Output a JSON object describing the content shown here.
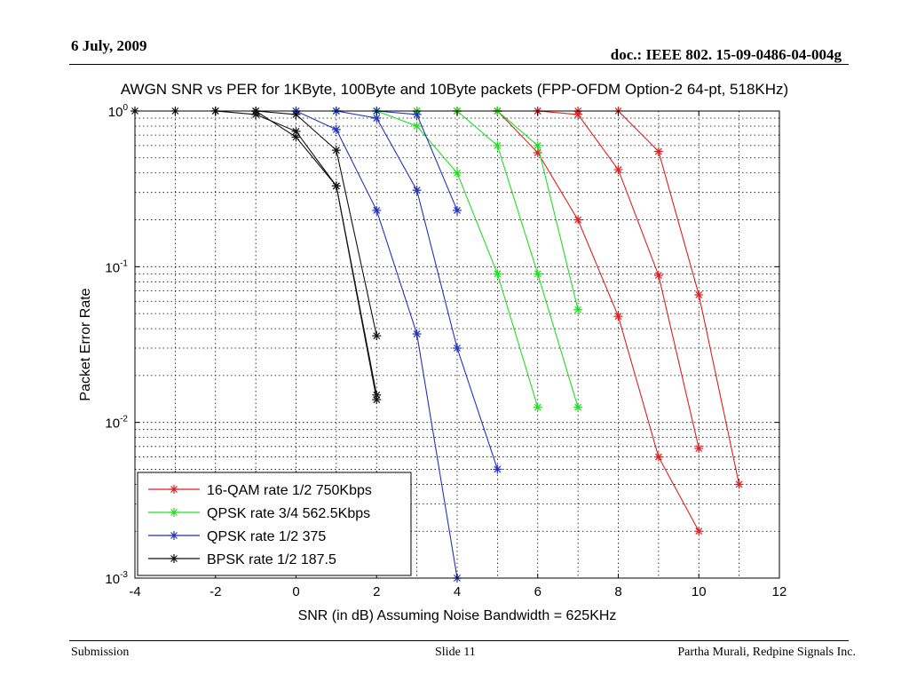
{
  "slide": {
    "date": "6 July, 2009",
    "doc_id": "doc.: IEEE 802. 15-09-0486-04-004g",
    "footer_left": "Submission",
    "footer_center": "Slide 11",
    "footer_right": "Partha Murali, Redpine Signals Inc."
  },
  "chart_data": {
    "type": "line",
    "title": "AWGN SNR vs PER for 1KByte, 100Byte and 10Byte packets (FPP-OFDM Option-2 64-pt, 518KHz)",
    "xlabel": "SNR (in dB) Assuming Noise Bandwidth = 625KHz",
    "ylabel": "Packet Error Rate",
    "xlim": [
      -4,
      12
    ],
    "ylim": [
      0.001,
      1
    ],
    "yscale": "log",
    "grid": true,
    "legend_position": "bottom-left",
    "xticks": [
      "-4",
      "-2",
      "0",
      "2",
      "4",
      "6",
      "8",
      "10",
      "12"
    ],
    "yticks": [
      {
        "base": "10",
        "exp": "0"
      },
      {
        "base": "10",
        "exp": "-1"
      },
      {
        "base": "10",
        "exp": "-2"
      },
      {
        "base": "10",
        "exp": "-3"
      }
    ],
    "series": [
      {
        "name": "16-QAM rate 1/2 750Kbps",
        "color": "#dd1f1f",
        "lines": [
          {
            "x": [
              3,
              4,
              5,
              6,
              7,
              8,
              9,
              10
            ],
            "y": [
              1,
              1,
              1,
              1,
              0.95,
              0.42,
              0.088,
              0.0068
            ]
          },
          {
            "x": [
              4,
              5,
              6,
              7,
              8,
              9,
              10
            ],
            "y": [
              1,
              1,
              0.54,
              0.2,
              0.048,
              0.006,
              0.002
            ]
          },
          {
            "x": [
              5,
              6,
              7,
              8,
              9,
              10,
              11
            ],
            "y": [
              1,
              1,
              1,
              1,
              0.55,
              0.066,
              0.004
            ]
          }
        ]
      },
      {
        "name": "QPSK rate 3/4 562.5Kbps",
        "color": "#22dd22",
        "lines": [
          {
            "x": [
              1,
              2,
              3,
              4,
              5,
              6
            ],
            "y": [
              1,
              1,
              0.8,
              0.4,
              0.09,
              0.0125
            ]
          },
          {
            "x": [
              1,
              2,
              3,
              4,
              5,
              6,
              7
            ],
            "y": [
              1,
              1,
              1,
              1,
              0.6,
              0.09,
              0.0125
            ]
          },
          {
            "x": [
              2,
              3,
              4,
              5,
              6,
              7
            ],
            "y": [
              1,
              1,
              1,
              1,
              0.6,
              0.053
            ]
          }
        ]
      },
      {
        "name": "QPSK rate 1/2 375",
        "color": "#2233bb",
        "lines": [
          {
            "x": [
              -1,
              0,
              1,
              2,
              3,
              4
            ],
            "y": [
              1,
              1,
              0.76,
              0.23,
              0.037,
              0.001
            ]
          },
          {
            "x": [
              0,
              1,
              2,
              3,
              4,
              5
            ],
            "y": [
              1,
              1,
              0.9,
              0.31,
              0.03,
              0.005
            ]
          },
          {
            "x": [
              1,
              2,
              3,
              4
            ],
            "y": [
              1,
              1,
              0.95,
              0.23
            ]
          }
        ]
      },
      {
        "name": "BPSK rate 1/2 187.5",
        "color": "#111111",
        "lines": [
          {
            "x": [
              -4,
              -3,
              -2,
              -1,
              0,
              1,
              2
            ],
            "y": [
              1,
              1,
              1,
              0.95,
              0.74,
              0.33,
              0.015
            ]
          },
          {
            "x": [
              -2,
              -1,
              0,
              1,
              2
            ],
            "y": [
              1,
              1,
              0.68,
              0.33,
              0.014
            ]
          },
          {
            "x": [
              -1,
              0,
              1,
              2
            ],
            "y": [
              1,
              0.95,
              0.56,
              0.036
            ]
          }
        ]
      }
    ]
  }
}
